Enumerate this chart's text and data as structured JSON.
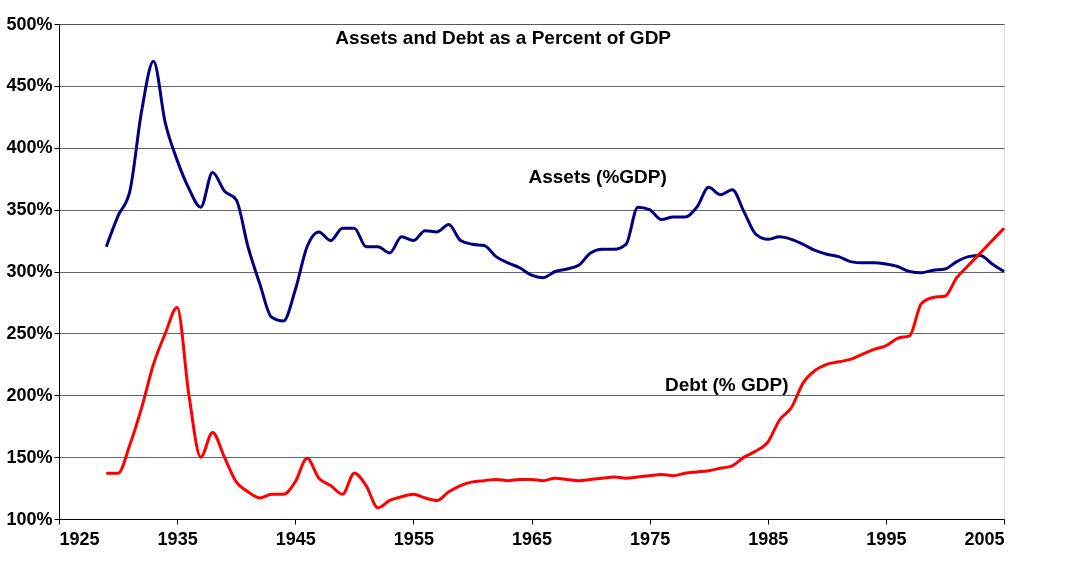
{
  "chart_data": {
    "type": "line",
    "title": "Assets and Debt as a Percent of GDP",
    "x": [
      1929,
      1930,
      1931,
      1932,
      1933,
      1934,
      1935,
      1936,
      1937,
      1938,
      1939,
      1940,
      1941,
      1942,
      1943,
      1944,
      1945,
      1946,
      1947,
      1948,
      1949,
      1950,
      1951,
      1952,
      1953,
      1954,
      1955,
      1956,
      1957,
      1958,
      1959,
      1960,
      1961,
      1962,
      1963,
      1964,
      1965,
      1966,
      1967,
      1968,
      1969,
      1970,
      1971,
      1972,
      1973,
      1974,
      1975,
      1976,
      1977,
      1978,
      1979,
      1980,
      1981,
      1982,
      1983,
      1984,
      1985,
      1986,
      1987,
      1988,
      1989,
      1990,
      1991,
      1992,
      1993,
      1994,
      1995,
      1996,
      1997,
      1998,
      1999,
      2000,
      2001,
      2002,
      2003,
      2004,
      2005
    ],
    "series": [
      {
        "name": "Assets (%GDP)",
        "color": "#000080",
        "values": [
          320,
          345,
          365,
          430,
          470,
          420,
          390,
          367,
          352,
          380,
          365,
          358,
          320,
          290,
          263,
          260,
          285,
          320,
          332,
          325,
          335,
          335,
          320,
          320,
          315,
          328,
          325,
          333,
          332,
          338,
          325,
          322,
          321,
          312,
          307,
          303,
          297,
          295,
          300,
          302,
          305,
          315,
          318,
          318,
          322,
          352,
          350,
          342,
          344,
          344,
          352,
          368,
          362,
          366,
          348,
          330,
          326,
          328,
          326,
          322,
          317,
          314,
          312,
          308,
          307,
          307,
          306,
          304,
          300,
          299,
          301,
          302,
          308,
          312,
          313,
          306,
          300
        ]
      },
      {
        "name": "Debt (% GDP)",
        "color": "#ff0000",
        "values": [
          137,
          137,
          160,
          190,
          225,
          250,
          271,
          200,
          150,
          170,
          150,
          130,
          122,
          117,
          120,
          120,
          130,
          149,
          133,
          127,
          120,
          137,
          127,
          109,
          115,
          118,
          120,
          117,
          115,
          122,
          127,
          130,
          131,
          132,
          131,
          132,
          132,
          131,
          133,
          132,
          131,
          132,
          133,
          134,
          133,
          134,
          135,
          136,
          135,
          137,
          138,
          139,
          141,
          143,
          150,
          155,
          162,
          180,
          190,
          210,
          220,
          225,
          227,
          229,
          233,
          237,
          240,
          246,
          248,
          274,
          279,
          280,
          295,
          305,
          315,
          325,
          335
        ]
      }
    ],
    "xlim": [
      1925,
      2005
    ],
    "xticks": [
      1925,
      1935,
      1945,
      1955,
      1965,
      1975,
      1985,
      1995,
      2005
    ],
    "ylim": [
      100,
      500
    ],
    "yticks": [
      {
        "value": 100,
        "label": "100%"
      },
      {
        "value": 150,
        "label": "150%"
      },
      {
        "value": 200,
        "label": "200%"
      },
      {
        "value": 250,
        "label": "250%"
      },
      {
        "value": 300,
        "label": "300%"
      },
      {
        "value": 350,
        "label": "350%"
      },
      {
        "value": 400,
        "label": "400%"
      },
      {
        "value": 450,
        "label": "450%"
      },
      {
        "value": 500,
        "label": "500%"
      }
    ],
    "grid": "y",
    "marker": "none",
    "line_style": "solid"
  }
}
